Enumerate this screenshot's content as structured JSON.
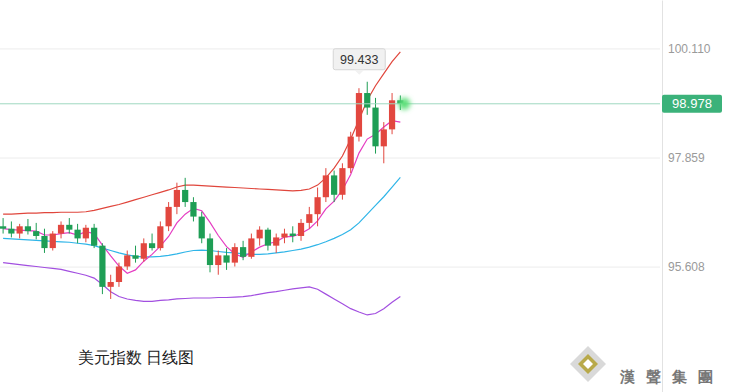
{
  "chart_data": {
    "type": "candlestick",
    "title": "美元指数 日线图",
    "categories": [
      null,
      null,
      null,
      null,
      null,
      null,
      null,
      null,
      null,
      null,
      null,
      null,
      null,
      null,
      null,
      null,
      null,
      null,
      null,
      null,
      null,
      null,
      null,
      null,
      null,
      null,
      null,
      null,
      null,
      null,
      null,
      null,
      null,
      null,
      null,
      null,
      null,
      null,
      null,
      null,
      null,
      null,
      null,
      null,
      null,
      null,
      null,
      null,
      null,
      null,
      null,
      null,
      null,
      null,
      null,
      null,
      null,
      null,
      null,
      null,
      null,
      null,
      null,
      null,
      null,
      null,
      null,
      null,
      null,
      null,
      null,
      null,
      null,
      null,
      null,
      null,
      null,
      null,
      null,
      null
    ],
    "candles": {
      "open": [
        96.45,
        96.4,
        96.3,
        96.45,
        96.35,
        96.25,
        96.0,
        96.3,
        96.48,
        96.38,
        96.2,
        96.42,
        96.05,
        95.2,
        95.3,
        95.62,
        95.85,
        95.78,
        96.1,
        96.0,
        96.45,
        96.85,
        97.2,
        96.95,
        96.65,
        96.2,
        95.65,
        95.85,
        95.7,
        96.02,
        95.82,
        96.2,
        96.38,
        96.05,
        96.22,
        96.3,
        96.25,
        96.52,
        96.7,
        97.05,
        97.5,
        97.1,
        97.65,
        98.3,
        99.2,
        98.9,
        98.1,
        98.45,
        99.05,
        null,
        null,
        null,
        null,
        null,
        null,
        null,
        null,
        null,
        null,
        null,
        null,
        null,
        null,
        null,
        null,
        null,
        null,
        null,
        null,
        null,
        null,
        null,
        null,
        null,
        null,
        null,
        null,
        null,
        null,
        null
      ],
      "high": [
        96.62,
        96.55,
        96.5,
        96.6,
        96.52,
        96.4,
        96.35,
        96.55,
        96.62,
        96.5,
        96.48,
        96.5,
        96.1,
        95.45,
        95.7,
        95.95,
        96.05,
        96.2,
        96.3,
        96.55,
        96.95,
        97.35,
        97.45,
        97.05,
        96.75,
        96.3,
        95.95,
        96.0,
        96.1,
        96.15,
        96.3,
        96.45,
        96.42,
        96.3,
        96.4,
        96.45,
        96.6,
        96.85,
        97.25,
        97.65,
        97.6,
        97.75,
        98.4,
        99.3,
        99.433,
        99.1,
        98.6,
        99.2,
        99.15,
        null,
        null,
        null,
        null,
        null,
        null,
        null,
        null,
        null,
        null,
        null,
        null,
        null,
        null,
        null,
        null,
        null,
        null,
        null,
        null,
        null,
        null,
        null,
        null,
        null,
        null,
        null,
        null,
        null,
        null,
        null
      ],
      "low": [
        96.3,
        96.22,
        96.2,
        96.28,
        96.18,
        95.9,
        95.95,
        96.2,
        96.3,
        96.1,
        96.12,
        96.0,
        95.05,
        94.95,
        95.2,
        95.55,
        95.7,
        95.72,
        95.95,
        95.95,
        96.35,
        96.7,
        96.85,
        96.55,
        96.1,
        95.5,
        95.45,
        95.55,
        95.62,
        95.75,
        95.78,
        96.05,
        95.95,
        95.9,
        96.1,
        96.12,
        96.15,
        96.4,
        96.45,
        96.95,
        96.95,
        97.0,
        97.55,
        98.2,
        98.75,
        97.95,
        97.75,
        98.35,
        98.85,
        null,
        null,
        null,
        null,
        null,
        null,
        null,
        null,
        null,
        null,
        null,
        null,
        null,
        null,
        null,
        null,
        null,
        null,
        null,
        null,
        null,
        null,
        null,
        null,
        null,
        null,
        null,
        null,
        null,
        null,
        null
      ],
      "close": [
        96.4,
        96.3,
        96.45,
        96.35,
        96.25,
        96.0,
        96.3,
        96.48,
        96.38,
        96.2,
        96.42,
        96.05,
        95.2,
        95.3,
        95.62,
        95.85,
        95.78,
        96.1,
        96.0,
        96.45,
        96.85,
        97.2,
        96.95,
        96.65,
        96.2,
        95.65,
        95.85,
        95.7,
        96.02,
        95.82,
        96.2,
        96.38,
        96.05,
        96.22,
        96.3,
        96.25,
        96.52,
        96.7,
        97.05,
        97.5,
        97.1,
        97.65,
        98.3,
        99.2,
        98.9,
        98.1,
        98.45,
        99.05,
        98.978,
        null,
        null,
        null,
        null,
        null,
        null,
        null,
        null,
        null,
        null,
        null,
        null,
        null,
        null,
        null,
        null,
        null,
        null,
        null,
        null,
        null,
        null,
        null,
        null,
        null,
        null,
        null,
        null,
        null,
        null,
        null
      ]
    },
    "series": [
      {
        "type": "line",
        "color": "#e0463c",
        "values": [
          96.7,
          96.7,
          96.71,
          96.72,
          96.72,
          96.73,
          96.73,
          96.74,
          96.74,
          96.74,
          96.75,
          96.78,
          96.82,
          96.86,
          96.9,
          96.95,
          97.0,
          97.05,
          97.1,
          97.15,
          97.2,
          97.26,
          97.3,
          97.3,
          97.29,
          97.28,
          97.27,
          97.26,
          97.25,
          97.24,
          97.23,
          97.22,
          97.21,
          97.2,
          97.19,
          97.18,
          97.19,
          97.22,
          97.3,
          97.45,
          97.65,
          97.9,
          98.25,
          98.65,
          99.05,
          99.35,
          99.6,
          99.85,
          100.05,
          null,
          null,
          null,
          null,
          null,
          null,
          null,
          null,
          null,
          null,
          null,
          null,
          null,
          null,
          null,
          null,
          null,
          null,
          null,
          null,
          null,
          null,
          null,
          null,
          null,
          null,
          null,
          null,
          null,
          null,
          null
        ]
      },
      {
        "type": "line",
        "color": "#2fb5e8",
        "values": [
          96.2,
          96.19,
          96.18,
          96.17,
          96.16,
          96.15,
          96.14,
          96.13,
          96.12,
          96.1,
          96.08,
          96.05,
          96.0,
          95.95,
          95.9,
          95.86,
          95.83,
          95.82,
          95.82,
          95.83,
          95.85,
          95.88,
          95.92,
          95.95,
          95.96,
          95.95,
          95.93,
          95.91,
          95.9,
          95.88,
          95.87,
          95.87,
          95.88,
          95.9,
          95.92,
          95.95,
          95.98,
          96.02,
          96.07,
          96.13,
          96.2,
          96.28,
          96.38,
          96.52,
          96.7,
          96.88,
          97.06,
          97.26,
          97.46,
          null,
          null,
          null,
          null,
          null,
          null,
          null,
          null,
          null,
          null,
          null,
          null,
          null,
          null,
          null,
          null,
          null,
          null,
          null,
          null,
          null,
          null,
          null,
          null,
          null,
          null,
          null,
          null,
          null,
          null,
          null
        ]
      },
      {
        "type": "line",
        "color": "#a24fe0",
        "values": [
          95.7,
          95.68,
          95.66,
          95.64,
          95.62,
          95.6,
          95.58,
          95.56,
          95.52,
          95.48,
          95.44,
          95.38,
          95.25,
          95.1,
          95.0,
          94.95,
          94.92,
          94.9,
          94.9,
          94.92,
          94.93,
          94.95,
          94.96,
          94.97,
          94.97,
          94.97,
          94.98,
          94.98,
          94.99,
          95.0,
          95.02,
          95.05,
          95.08,
          95.1,
          95.13,
          95.16,
          95.18,
          95.2,
          95.15,
          95.05,
          94.95,
          94.85,
          94.75,
          94.68,
          94.62,
          94.65,
          94.75,
          94.88,
          95.0,
          null,
          null,
          null,
          null,
          null,
          null,
          null,
          null,
          null,
          null,
          null,
          null,
          null,
          null,
          null,
          null,
          null,
          null,
          null,
          null,
          null,
          null,
          null,
          null,
          null,
          null,
          null,
          null,
          null,
          null,
          null
        ]
      },
      {
        "type": "line",
        "color": "#e53dc2",
        "values": [
          96.4,
          96.38,
          96.37,
          96.36,
          96.35,
          96.27,
          96.27,
          96.3,
          96.32,
          96.27,
          96.34,
          96.3,
          96.06,
          95.84,
          95.63,
          95.48,
          95.55,
          95.73,
          95.87,
          96.04,
          96.24,
          96.52,
          96.7,
          96.82,
          96.77,
          96.53,
          96.26,
          96.03,
          95.88,
          95.81,
          95.92,
          96.02,
          96.09,
          96.13,
          96.23,
          96.24,
          96.3,
          96.4,
          96.56,
          96.81,
          96.97,
          97.2,
          97.52,
          97.96,
          98.25,
          98.35,
          98.5,
          98.63,
          98.6,
          null,
          null,
          null,
          null,
          null,
          null,
          null,
          null,
          null,
          null,
          null,
          null,
          null,
          null,
          null,
          null,
          null,
          null,
          null,
          null,
          null,
          null,
          null,
          null,
          null,
          null,
          null,
          null,
          null,
          null,
          null
        ]
      }
    ],
    "ylim": [
      93.03,
      101.12
    ],
    "yticks": [
      95.608,
      97.859,
      {
        "value": 100.11,
        "label": "100.110"
      }
    ],
    "grid": true,
    "tick_labels": "y"
  },
  "watermark": "漢聲集團"
}
